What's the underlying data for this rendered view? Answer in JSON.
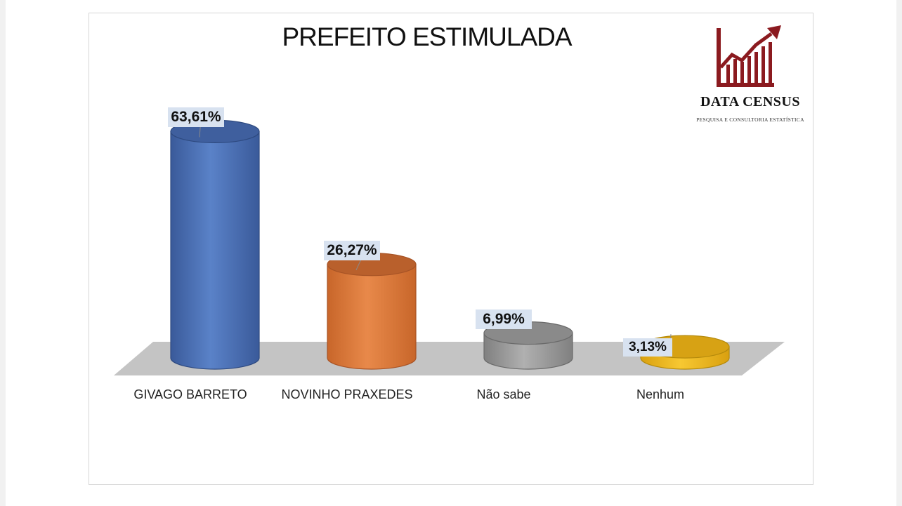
{
  "chart_data": {
    "type": "bar",
    "title": "PREFEITO ESTIMULADA",
    "categories": [
      "GIVAGO BARRETO",
      "NOVINHO PRAXEDES",
      "Não sabe",
      "Nenhum"
    ],
    "values": [
      63.61,
      26.27,
      6.99,
      3.13
    ],
    "value_labels": [
      "63,61%",
      "26,27%",
      "6,99%",
      "3,13%"
    ],
    "unit": "%",
    "ylim": [
      0,
      70
    ],
    "grid": false,
    "legend": "none",
    "colors": [
      "#4a6fb5",
      "#e07b39",
      "#9a9a9a",
      "#f2b91c"
    ]
  },
  "logo": {
    "brand": "DATA CENSUS",
    "tagline": "PESQUISA E CONSULTORIA ESTATÍSTICA",
    "color": "#8b1a1f"
  }
}
